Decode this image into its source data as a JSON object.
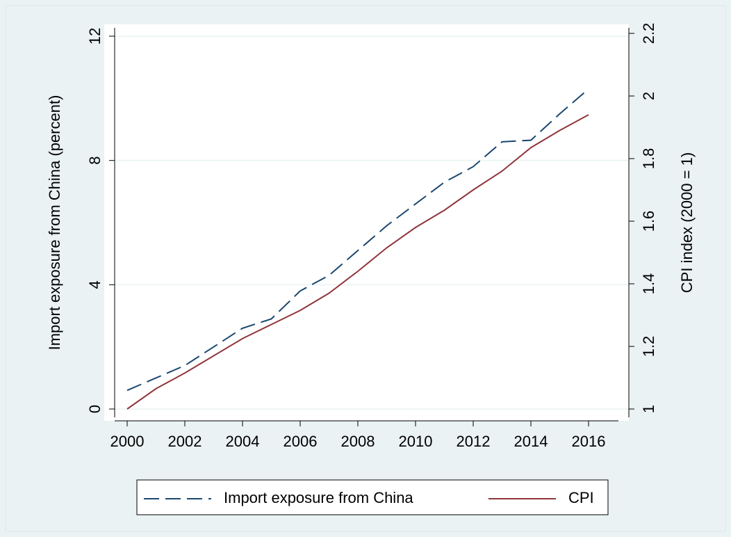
{
  "chart_data": {
    "type": "line",
    "x": [
      2000,
      2001,
      2002,
      2003,
      2004,
      2005,
      2006,
      2007,
      2008,
      2009,
      2010,
      2011,
      2012,
      2013,
      2014,
      2015,
      2016
    ],
    "series": [
      {
        "name": "Import exposure from China",
        "color": "#1a476f",
        "dash": true,
        "values": [
          0.6,
          1.0,
          1.4,
          2.0,
          2.6,
          2.9,
          3.8,
          4.3,
          5.1,
          5.9,
          6.6,
          7.3,
          7.8,
          8.6,
          8.65,
          9.5,
          10.3
        ]
      },
      {
        "name": "CPI",
        "color": "#90353b",
        "dash": false,
        "axis": "y2",
        "values": [
          1.0,
          1.065,
          1.115,
          1.17,
          1.225,
          1.27,
          1.315,
          1.37,
          1.44,
          1.515,
          1.58,
          1.635,
          1.7,
          1.76,
          1.835,
          1.89,
          1.94
        ]
      }
    ],
    "ylabel": "Import exposure from China (percent)",
    "y2label": "CPI index (2000 = 1)",
    "xlim": [
      2000,
      2016
    ],
    "xticks": [
      2000,
      2002,
      2004,
      2006,
      2008,
      2010,
      2012,
      2014,
      2016
    ],
    "ylim": [
      0,
      12
    ],
    "yticks": [
      0,
      4,
      8,
      12
    ],
    "y2lim": [
      1,
      2.2
    ],
    "y2ticks": [
      1,
      1.2,
      1.4,
      1.6,
      1.8,
      2,
      {
        "value": 2.2,
        "label": "2.2"
      }
    ],
    "grid": true
  }
}
